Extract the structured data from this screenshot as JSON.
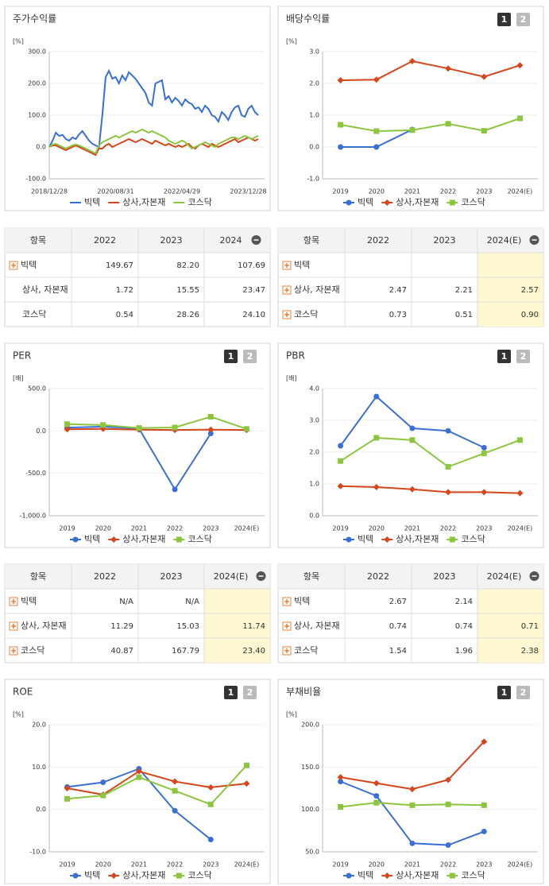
{
  "chart_data": [
    {
      "type": "line",
      "title": "주가수익률",
      "unit": "[%]",
      "grid": true,
      "categories": [
        "2018/12/28",
        null,
        null,
        null,
        null,
        null,
        null,
        null,
        null,
        null,
        null,
        null,
        null,
        null,
        null,
        null,
        null,
        null,
        null,
        null,
        "2020/08/31",
        null,
        null,
        null,
        null,
        null,
        null,
        null,
        null,
        null,
        null,
        null,
        null,
        null,
        null,
        null,
        null,
        null,
        null,
        null,
        "2022/04/29",
        null,
        null,
        null,
        null,
        null,
        null,
        null,
        null,
        null,
        null,
        null,
        null,
        null,
        null,
        null,
        null,
        null,
        null,
        null,
        "2023/12/28",
        null,
        null,
        null
      ],
      "ylim": [
        -100,
        300
      ],
      "yticks": [
        {
          "value": -100,
          "label": "-100.0"
        },
        {
          "value": 0,
          "label": "0.0"
        },
        {
          "value": 100,
          "label": "100.0"
        },
        {
          "value": 200,
          "label": "200.0"
        },
        {
          "value": 300,
          "label": "300.0"
        }
      ],
      "series": [
        {
          "name": "빅텍",
          "color": "#3a6fd6",
          "values": [
            0,
            20,
            45,
            35,
            38,
            25,
            20,
            30,
            25,
            40,
            50,
            35,
            20,
            10,
            5,
            0,
            100,
            220,
            240,
            215,
            220,
            200,
            225,
            210,
            235,
            225,
            215,
            200,
            185,
            170,
            140,
            130,
            200,
            205,
            210,
            150,
            160,
            140,
            155,
            145,
            130,
            150,
            140,
            135,
            120,
            125,
            110,
            130,
            120,
            100,
            95,
            80,
            110,
            100,
            85,
            110,
            125,
            130,
            100,
            95,
            120,
            130,
            110,
            100
          ]
        },
        {
          "name": "상사,자본재",
          "color": "#d6461c",
          "values": [
            0,
            5,
            5,
            0,
            -5,
            -10,
            -5,
            0,
            5,
            0,
            -5,
            -10,
            -15,
            -20,
            -25,
            -5,
            -5,
            5,
            10,
            0,
            5,
            10,
            15,
            20,
            25,
            20,
            15,
            20,
            25,
            20,
            15,
            10,
            20,
            15,
            10,
            5,
            10,
            5,
            0,
            5,
            0,
            5,
            10,
            0,
            -5,
            5,
            10,
            5,
            0,
            10,
            5,
            0,
            5,
            10,
            15,
            20,
            25,
            15,
            20,
            25,
            30,
            25,
            20,
            25
          ]
        },
        {
          "name": "코스닥",
          "color": "#8cc63f",
          "values": [
            0,
            8,
            10,
            5,
            0,
            -5,
            0,
            5,
            8,
            5,
            0,
            -5,
            -10,
            -15,
            -20,
            5,
            15,
            20,
            25,
            30,
            35,
            30,
            35,
            40,
            45,
            50,
            45,
            50,
            55,
            50,
            45,
            50,
            45,
            40,
            35,
            30,
            20,
            15,
            10,
            15,
            20,
            15,
            5,
            -5,
            0,
            5,
            10,
            15,
            10,
            5,
            0,
            10,
            15,
            20,
            25,
            30,
            30,
            25,
            30,
            35,
            30,
            25,
            30,
            35
          ]
        }
      ]
    },
    {
      "type": "line",
      "title": "배당수익률",
      "unit": "[%]",
      "grid": true,
      "tabs": [
        "1",
        "2"
      ],
      "markers": true,
      "categories": [
        "2019",
        "2020",
        "2021",
        "2022",
        "2023",
        "2024(E)"
      ],
      "ylim": [
        -1,
        3
      ],
      "yticks": [
        {
          "value": -1,
          "label": "-1.0"
        },
        {
          "value": 0,
          "label": "0.0"
        },
        {
          "value": 1,
          "label": "1.0"
        },
        {
          "value": 2,
          "label": "2.0"
        },
        {
          "value": 3,
          "label": "3.0"
        }
      ],
      "series": [
        {
          "name": "빅텍",
          "color": "#3a6fd6",
          "marker": "circle",
          "values": [
            0,
            0,
            0.55,
            null,
            null,
            null
          ]
        },
        {
          "name": "상사,자본재",
          "color": "#d6461c",
          "marker": "diamond",
          "values": [
            2.1,
            2.12,
            2.7,
            2.47,
            2.21,
            2.57
          ]
        },
        {
          "name": "코스닥",
          "color": "#8cc63f",
          "marker": "square",
          "values": [
            0.7,
            0.5,
            0.53,
            0.73,
            0.51,
            0.9
          ]
        }
      ]
    },
    {
      "type": "line",
      "title": "PER",
      "unit": "[배]",
      "grid": true,
      "tabs": [
        "1",
        "2"
      ],
      "markers": true,
      "categories": [
        "2019",
        "2020",
        "2021",
        "2022",
        "2023",
        "2024(E)"
      ],
      "ylim": [
        -1000,
        500
      ],
      "yticks": [
        {
          "value": -1000,
          "label": "-1,000.0"
        },
        {
          "value": -500,
          "label": "-500.0"
        },
        {
          "value": 0,
          "label": "0.0"
        },
        {
          "value": 500,
          "label": "500.0"
        }
      ],
      "series": [
        {
          "name": "빅텍",
          "color": "#3a6fd6",
          "marker": "circle",
          "values": [
            40,
            50,
            30,
            -690,
            -30,
            null
          ]
        },
        {
          "name": "상사,자본재",
          "color": "#d6461c",
          "marker": "diamond",
          "values": [
            20,
            25,
            15,
            11.29,
            15.03,
            11.74
          ]
        },
        {
          "name": "코스닥",
          "color": "#8cc63f",
          "marker": "square",
          "values": [
            80,
            70,
            35,
            40.87,
            167.79,
            23.4
          ]
        }
      ]
    },
    {
      "type": "line",
      "title": "PBR",
      "unit": "[배]",
      "grid": true,
      "tabs": [
        "1",
        "2"
      ],
      "markers": true,
      "categories": [
        "2019",
        "2020",
        "2021",
        "2022",
        "2023",
        "2024(E)"
      ],
      "ylim": [
        0,
        4
      ],
      "yticks": [
        {
          "value": 0,
          "label": "0.0"
        },
        {
          "value": 1,
          "label": "1.0"
        },
        {
          "value": 2,
          "label": "2.0"
        },
        {
          "value": 3,
          "label": "3.0"
        },
        {
          "value": 4,
          "label": "4.0"
        }
      ],
      "series": [
        {
          "name": "빅텍",
          "color": "#3a6fd6",
          "marker": "circle",
          "values": [
            2.2,
            3.75,
            2.75,
            2.67,
            2.14,
            null
          ]
        },
        {
          "name": "상사,자본재",
          "color": "#d6461c",
          "marker": "diamond",
          "values": [
            0.93,
            0.9,
            0.83,
            0.74,
            0.74,
            0.71
          ]
        },
        {
          "name": "코스닥",
          "color": "#8cc63f",
          "marker": "square",
          "values": [
            1.72,
            2.45,
            2.38,
            1.54,
            1.96,
            2.38
          ]
        }
      ]
    },
    {
      "type": "line",
      "title": "ROE",
      "unit": "[%]",
      "grid": true,
      "tabs": [
        "1",
        "2"
      ],
      "markers": true,
      "categories": [
        "2019",
        "2020",
        "2021",
        "2022",
        "2023",
        "2024(E)"
      ],
      "ylim": [
        -10,
        20
      ],
      "yticks": [
        {
          "value": -10,
          "label": "-10.0"
        },
        {
          "value": 0,
          "label": "0.0"
        },
        {
          "value": 10,
          "label": "10.0"
        },
        {
          "value": 20,
          "label": "20.0"
        }
      ],
      "series": [
        {
          "name": "빅텍",
          "color": "#3a6fd6",
          "marker": "circle",
          "values": [
            5.3,
            6.4,
            9.6,
            -0.3,
            -7.1,
            null
          ]
        },
        {
          "name": "상사,자본재",
          "color": "#d6461c",
          "marker": "diamond",
          "values": [
            5,
            3.5,
            9,
            6.6,
            5.2,
            6.1
          ]
        },
        {
          "name": "코스닥",
          "color": "#8cc63f",
          "marker": "square",
          "values": [
            2.5,
            3.3,
            7.6,
            4.4,
            1.2,
            10.4
          ]
        }
      ]
    },
    {
      "type": "line",
      "title": "부채비율",
      "unit": "[%]",
      "grid": true,
      "tabs": [
        "1",
        "2"
      ],
      "markers": true,
      "categories": [
        "2019",
        "2020",
        "2021",
        "2022",
        "2023",
        "2024(E)"
      ],
      "ylim": [
        50,
        200
      ],
      "yticks": [
        {
          "value": 50,
          "label": "50.0"
        },
        {
          "value": 100,
          "label": "100.0"
        },
        {
          "value": 150,
          "label": "150.0"
        },
        {
          "value": 200,
          "label": "200.0"
        }
      ],
      "series": [
        {
          "name": "빅텍",
          "color": "#3a6fd6",
          "marker": "circle",
          "values": [
            133,
            116,
            60,
            58,
            74,
            null
          ]
        },
        {
          "name": "상사,자본재",
          "color": "#d6461c",
          "marker": "diamond",
          "values": [
            138,
            131,
            124,
            135,
            180,
            null
          ]
        },
        {
          "name": "코스닥",
          "color": "#8cc63f",
          "marker": "square",
          "values": [
            103,
            108,
            105,
            106,
            105,
            null
          ]
        }
      ]
    }
  ],
  "tables": [
    {
      "header": [
        "항목",
        "2022",
        "2023",
        "2024"
      ],
      "icons": [
        true,
        false,
        false
      ],
      "highlight_last": false,
      "rows": [
        [
          "빅텍",
          "149.67",
          "82.20",
          "107.69"
        ],
        [
          "상사, 자본재",
          "1.72",
          "15.55",
          "23.47"
        ],
        [
          "코스닥",
          "0.54",
          "28.26",
          "24.10"
        ]
      ]
    },
    {
      "header": [
        "항목",
        "2022",
        "2023",
        "2024(E)"
      ],
      "icons": [
        true,
        true,
        true
      ],
      "highlight_last": true,
      "rows": [
        [
          "빅텍",
          null,
          null,
          null
        ],
        [
          "상사, 자본재",
          "2.47",
          "2.21",
          "2.57"
        ],
        [
          "코스닥",
          "0.73",
          "0.51",
          "0.90"
        ]
      ]
    },
    {
      "header": [
        "항목",
        "2022",
        "2023",
        "2024(E)"
      ],
      "icons": [
        true,
        true,
        true
      ],
      "highlight_last": true,
      "rows": [
        [
          "빅텍",
          "N/A",
          "N/A",
          null
        ],
        [
          "상사, 자본재",
          "11.29",
          "15.03",
          "11.74"
        ],
        [
          "코스닥",
          "40.87",
          "167.79",
          "23.40"
        ]
      ]
    },
    {
      "header": [
        "항목",
        "2022",
        "2023",
        "2024(E)"
      ],
      "icons": [
        true,
        true,
        true
      ],
      "highlight_last": true,
      "rows": [
        [
          "빅텍",
          "2.67",
          "2.14",
          null
        ],
        [
          "상사, 자본재",
          "0.74",
          "0.74",
          "0.71"
        ],
        [
          "코스닥",
          "1.54",
          "1.96",
          "2.38"
        ]
      ]
    }
  ]
}
